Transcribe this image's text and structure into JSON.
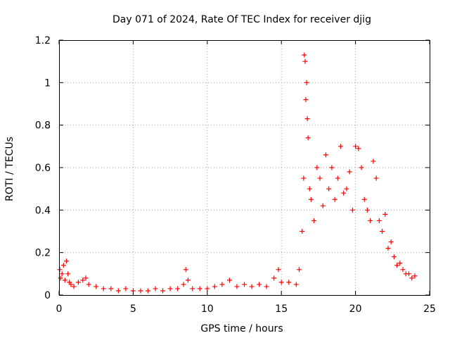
{
  "chart_data": {
    "type": "scatter",
    "title": "Day 071 of 2024, Rate Of TEC Index for receiver djig",
    "xlabel": "GPS time / hours",
    "ylabel": "ROTI / TECUs",
    "xlim": [
      0,
      25
    ],
    "ylim": [
      0,
      1.2
    ],
    "x_ticks": [
      0,
      5,
      10,
      15,
      20,
      25
    ],
    "x_tick_labels": [
      "0",
      "5",
      "10",
      "15",
      "20",
      "25"
    ],
    "y_ticks": [
      0,
      0.2,
      0.4,
      0.6,
      0.8,
      1,
      1.2
    ],
    "y_tick_labels": [
      "0",
      "0.2",
      "0.4",
      "0.6",
      "0.8",
      "1",
      "1.2"
    ],
    "grid": true,
    "marker": "+",
    "series": [
      {
        "name": "ROTI",
        "color": "#ff0000",
        "x": [
          0.05,
          0.1,
          0.2,
          0.3,
          0.4,
          0.5,
          0.6,
          0.7,
          0.8,
          1.0,
          1.3,
          1.6,
          1.8,
          2.0,
          2.5,
          3.0,
          3.5,
          4.0,
          4.5,
          5.0,
          5.5,
          6.0,
          6.5,
          7.0,
          7.5,
          8.0,
          8.4,
          8.55,
          8.7,
          9.0,
          9.5,
          10.0,
          10.5,
          11.0,
          11.5,
          12.0,
          12.5,
          13.0,
          13.5,
          14.0,
          14.5,
          14.8,
          15.0,
          15.5,
          16.0,
          16.2,
          16.4,
          16.5,
          16.55,
          16.6,
          16.65,
          16.7,
          16.75,
          16.8,
          16.9,
          17.0,
          17.2,
          17.4,
          17.6,
          17.8,
          18.0,
          18.2,
          18.4,
          18.6,
          18.8,
          19.0,
          19.2,
          19.4,
          19.6,
          19.8,
          20.0,
          20.2,
          20.4,
          20.6,
          20.8,
          21.0,
          21.2,
          21.4,
          21.6,
          21.8,
          22.0,
          22.2,
          22.4,
          22.6,
          22.8,
          23.0,
          23.2,
          23.4,
          23.6,
          23.8,
          24.0
        ],
        "y": [
          0.12,
          0.08,
          0.1,
          0.14,
          0.07,
          0.16,
          0.1,
          0.06,
          0.05,
          0.04,
          0.06,
          0.07,
          0.08,
          0.05,
          0.04,
          0.03,
          0.03,
          0.02,
          0.03,
          0.02,
          0.02,
          0.02,
          0.03,
          0.02,
          0.03,
          0.03,
          0.05,
          0.12,
          0.07,
          0.03,
          0.03,
          0.03,
          0.04,
          0.05,
          0.07,
          0.04,
          0.05,
          0.04,
          0.05,
          0.04,
          0.08,
          0.12,
          0.06,
          0.06,
          0.05,
          0.12,
          0.3,
          0.55,
          1.13,
          1.1,
          0.92,
          1.0,
          0.83,
          0.74,
          0.5,
          0.45,
          0.35,
          0.6,
          0.55,
          0.42,
          0.66,
          0.5,
          0.6,
          0.45,
          0.55,
          0.7,
          0.48,
          0.5,
          0.58,
          0.4,
          0.7,
          0.69,
          0.6,
          0.45,
          0.4,
          0.35,
          0.63,
          0.55,
          0.35,
          0.3,
          0.38,
          0.22,
          0.25,
          0.18,
          0.14,
          0.15,
          0.12,
          0.1,
          0.1,
          0.08,
          0.09
        ]
      }
    ]
  }
}
